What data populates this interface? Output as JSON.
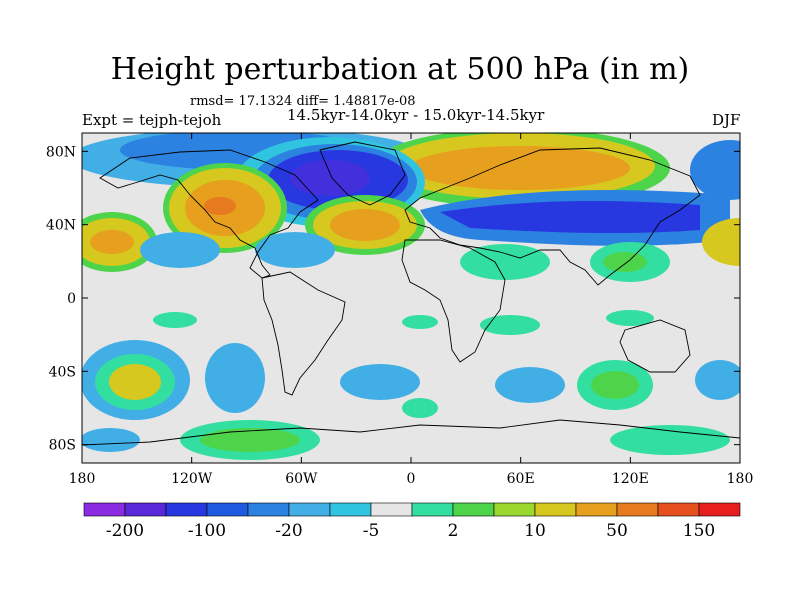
{
  "title": "Height perturbation at 500 hPa (in m)",
  "stats": "rmsd= 17.1324 diff= 1.48817e-08",
  "experiment": "Expt = tejph-tejoh",
  "periods": "14.5kyr-14.0kyr - 15.0kyr-14.5kyr",
  "season": "DJF",
  "axes": {
    "lat_ticks": [
      "80N",
      "40N",
      "0",
      "40S",
      "80S"
    ],
    "lon_ticks": [
      "180",
      "120W",
      "60W",
      "0",
      "60E",
      "120E",
      "180"
    ]
  },
  "colorbar": {
    "colors": [
      "#8a2be2",
      "#5a28d8",
      "#2838e0",
      "#1e5ae0",
      "#2c82e0",
      "#42aee6",
      "#30c4e0",
      "#e6e6e6",
      "#32dfa0",
      "#4ed44a",
      "#9ad82e",
      "#d6c81e",
      "#e6a01e",
      "#e67a1e",
      "#e6501e",
      "#e61e1e"
    ],
    "labels": [
      "-200",
      "-100",
      "-20",
      "-5",
      "2",
      "10",
      "50",
      "150"
    ]
  }
}
